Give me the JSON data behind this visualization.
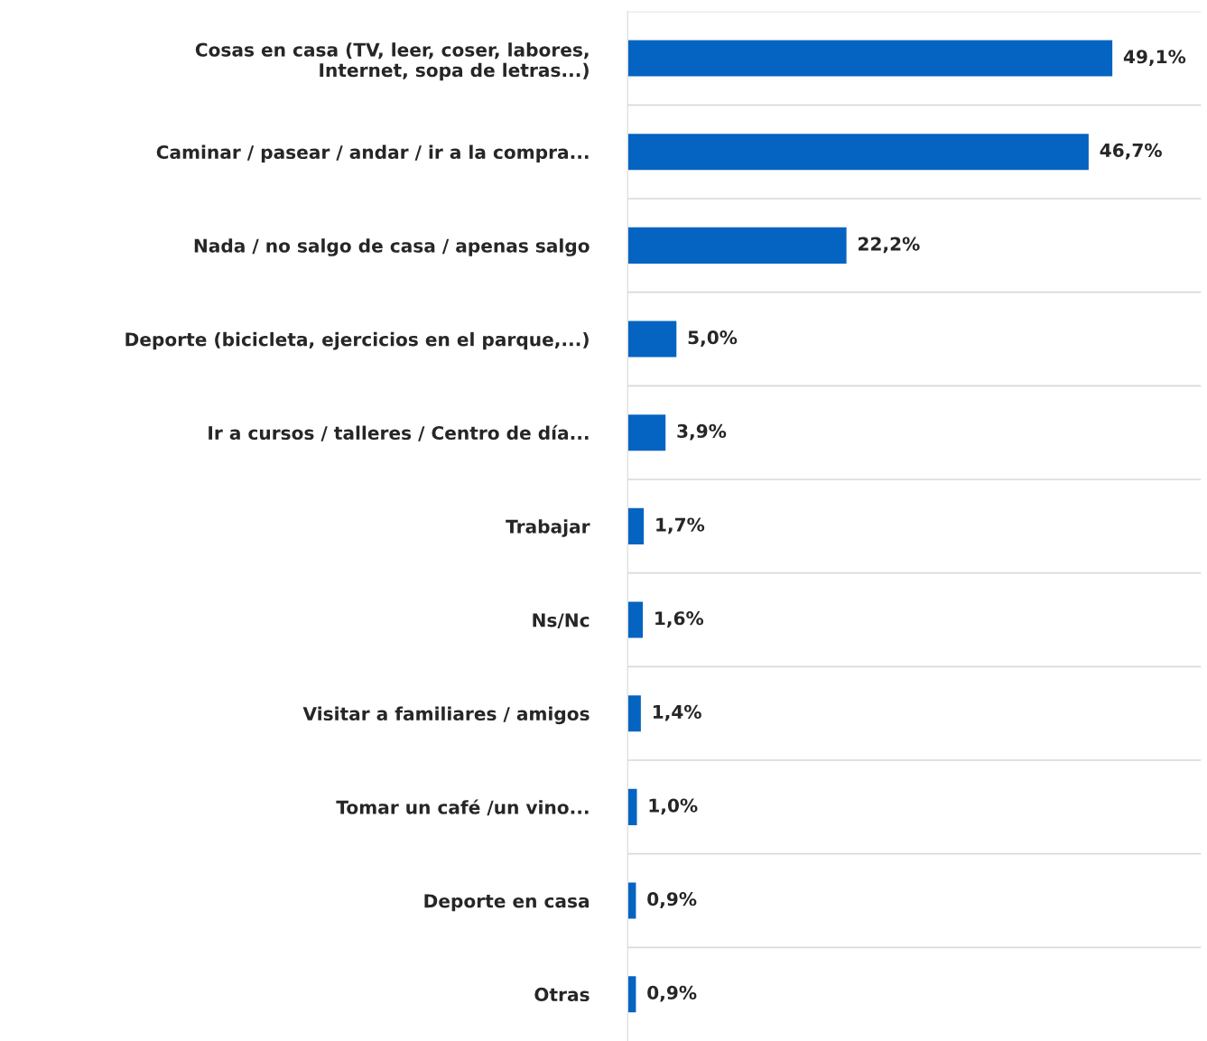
{
  "chart_data": {
    "type": "bar",
    "orientation": "horizontal",
    "categories": [
      "Cosas en casa (TV, leer, coser, labores,\nInternet, sopa de letras...)",
      "Caminar / pasear / andar / ir a la compra...",
      "Nada / no salgo de casa / apenas salgo",
      "Deporte (bicicleta, ejercicios en el parque,...)",
      "Ir a cursos / talleres / Centro de día...",
      "Trabajar",
      "Ns/Nc",
      "Visitar a familiares / amigos",
      "Tomar un café /un vino...",
      "Deporte en casa",
      "Otras"
    ],
    "values": [
      49.1,
      46.7,
      22.2,
      5.0,
      3.9,
      1.7,
      1.6,
      1.4,
      1.0,
      0.9,
      0.9
    ],
    "value_labels": [
      "49,1%",
      "46,7%",
      "22,2%",
      "5,0%",
      "3,9%",
      "1,7%",
      "1,6%",
      "1,4%",
      "1,0%",
      "0,9%",
      "0,9%"
    ],
    "color": "#0563c1",
    "xlim": [
      0,
      58
    ],
    "grid": "y",
    "tick_labels": "y"
  }
}
